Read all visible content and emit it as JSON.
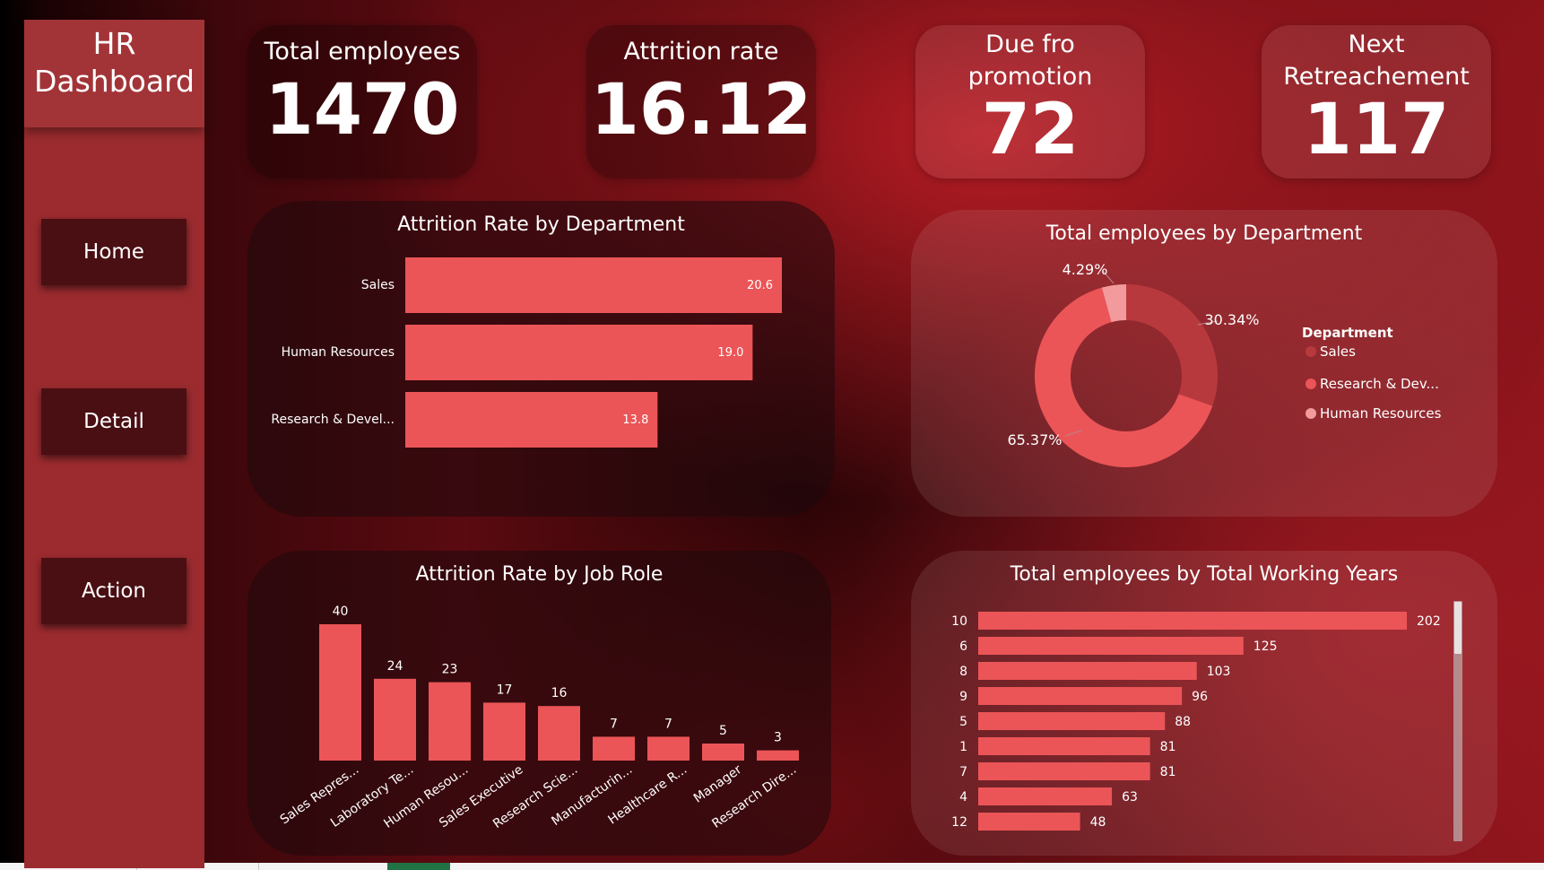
{
  "sidebar": {
    "title_line1": "HR",
    "title_line2": "Dashboard",
    "nav": [
      {
        "label": "Home"
      },
      {
        "label": "Detail"
      },
      {
        "label": "Action"
      }
    ]
  },
  "kpis": [
    {
      "label": "Total employees",
      "value": "1470"
    },
    {
      "label": "Attrition rate",
      "value": "16.12"
    },
    {
      "label_line1": "Due fro",
      "label_line2": "promotion",
      "value": "72"
    },
    {
      "label_line1": "Next",
      "label_line2": "Retreachement",
      "value": "117"
    }
  ],
  "colors": {
    "bar": "#eb5557",
    "donut_sales": "#b8393d",
    "donut_rd": "#eb5557",
    "donut_hr": "#f29a9c"
  },
  "chart_data": [
    {
      "type": "bar",
      "orientation": "horizontal",
      "title": "Attrition Rate by Department",
      "categories": [
        "Sales",
        "Human Resources",
        "Research & Devel..."
      ],
      "values": [
        20.6,
        19.0,
        13.8
      ],
      "value_labels": [
        "20.6",
        "19.0",
        "13.8"
      ]
    },
    {
      "type": "pie",
      "variant": "donut",
      "title": "Total employees by Department",
      "legend_title": "Department",
      "legend": [
        "Sales",
        "Research & Dev...",
        "Human Resources"
      ],
      "legend_placement": "right",
      "values": [
        30.34,
        65.37,
        4.29
      ],
      "value_labels": [
        "30.34%",
        "65.37%",
        "4.29%"
      ]
    },
    {
      "type": "bar",
      "title": "Attrition Rate by Job Role",
      "categories": [
        "Sales Repres...",
        "Laboratory Te...",
        "Human Resou...",
        "Sales Executive",
        "Research Scie...",
        "Manufacturin...",
        "Healthcare R...",
        "Manager",
        "Research Dire..."
      ],
      "values": [
        40,
        24,
        23,
        17,
        16,
        7,
        7,
        5,
        3
      ]
    },
    {
      "type": "bar",
      "orientation": "horizontal",
      "title": "Total employees by Total Working Years",
      "categories": [
        "10",
        "6",
        "8",
        "9",
        "5",
        "1",
        "7",
        "4",
        "12"
      ],
      "values": [
        202,
        125,
        103,
        96,
        88,
        81,
        81,
        63,
        48
      ]
    }
  ]
}
